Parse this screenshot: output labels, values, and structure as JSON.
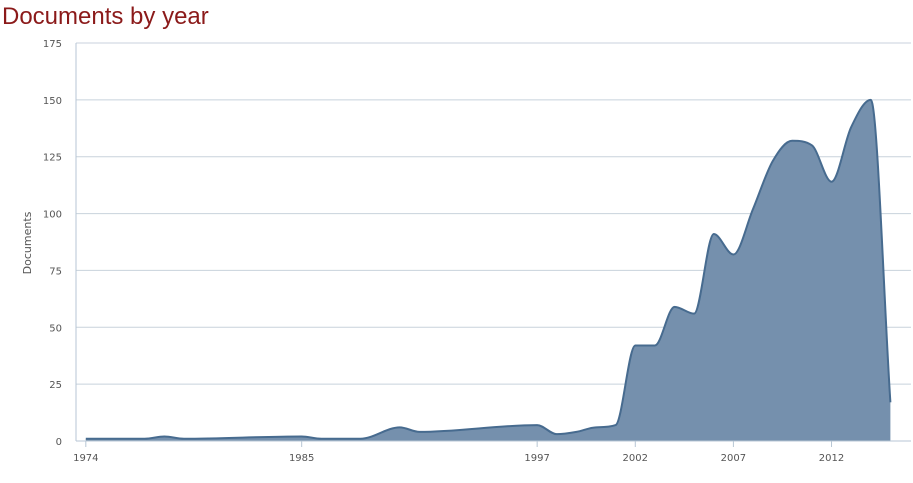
{
  "page": {
    "title": "Documents by year"
  },
  "chart_data": {
    "type": "area",
    "title": "Documents by year",
    "xlabel": "",
    "ylabel": "Documents",
    "ylim": [
      0,
      175
    ],
    "y_ticks": [
      "0",
      "25",
      "50",
      "75",
      "100",
      "125",
      "150",
      "175"
    ],
    "x_ticks": [
      "1974",
      "1985",
      "1997",
      "2002",
      "2007",
      "2012"
    ],
    "grid": true,
    "legend": "none",
    "colors": {
      "fill": "#7590ad",
      "line": "#476b8f",
      "grid": "#c8d2dc",
      "axis": "#b7c6d4",
      "title": "#8b1a1a"
    },
    "series": [
      {
        "points": [
          {
            "x": "1974",
            "y": 1
          },
          {
            "x": "1975",
            "y": 1
          },
          {
            "x": "1976",
            "y": 1
          },
          {
            "x": "1977",
            "y": 1
          },
          {
            "x": "1978",
            "y": 2
          },
          {
            "x": "1979",
            "y": 1
          },
          {
            "x": "1985",
            "y": 2
          },
          {
            "x": "1986",
            "y": 1
          },
          {
            "x": "1987",
            "y": 1
          },
          {
            "x": "1988",
            "y": 1
          },
          {
            "x": "1990",
            "y": 6
          },
          {
            "x": "1991",
            "y": 4
          },
          {
            "x": "1997",
            "y": 7
          },
          {
            "x": "1998",
            "y": 3
          },
          {
            "x": "1999",
            "y": 4
          },
          {
            "x": "2000",
            "y": 6
          },
          {
            "x": "2001",
            "y": 7
          },
          {
            "x": "2002",
            "y": 42
          },
          {
            "x": "2003",
            "y": 42
          },
          {
            "x": "2004",
            "y": 59
          },
          {
            "x": "2005",
            "y": 56
          },
          {
            "x": "2006",
            "y": 91
          },
          {
            "x": "2007",
            "y": 82
          },
          {
            "x": "2008",
            "y": 102
          },
          {
            "x": "2009",
            "y": 123
          },
          {
            "x": "2010",
            "y": 132
          },
          {
            "x": "2011",
            "y": 130
          },
          {
            "x": "2012",
            "y": 114
          },
          {
            "x": "2013",
            "y": 138
          },
          {
            "x": "2014",
            "y": 150
          },
          {
            "x": "2015",
            "y": 17
          }
        ]
      }
    ]
  }
}
